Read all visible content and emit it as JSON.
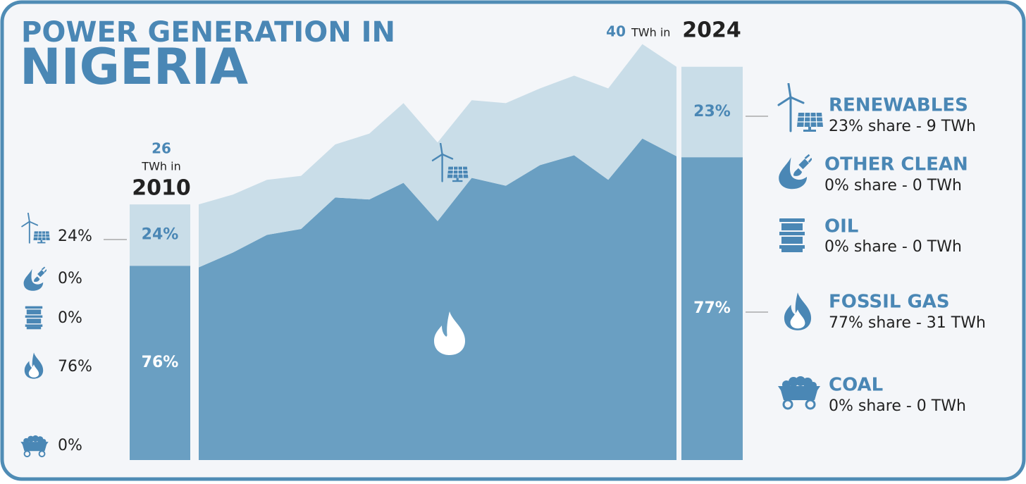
{
  "chart_data": {
    "type": "area",
    "title": "POWER GENERATION IN",
    "subtitle": "NIGERIA",
    "unit": "TWh in",
    "categories": [
      "2010",
      null,
      null,
      null,
      null,
      null,
      null,
      null,
      null,
      null,
      null,
      null,
      null,
      null,
      "2024"
    ],
    "ylim": [
      0,
      45
    ],
    "series": [
      {
        "name": "FOSSIL GAS",
        "color": "#6a9fc2",
        "values": [
          19.6,
          21.1,
          22.9,
          23.5,
          26.7,
          26.5,
          28.2,
          24.3,
          28.7,
          27.9,
          30.0,
          31.0,
          28.5,
          32.7,
          30.9
        ]
      },
      {
        "name": "RENEWABLES",
        "color": "#c9dde8",
        "values": [
          6.4,
          5.9,
          5.6,
          5.4,
          5.4,
          6.7,
          8.1,
          8.0,
          7.9,
          8.4,
          7.8,
          8.1,
          9.3,
          9.6,
          9.1
        ]
      }
    ],
    "start": {
      "total": 26,
      "segments": [
        {
          "share": 76,
          "label": "76%"
        },
        {
          "share": 24,
          "label": "24%"
        }
      ],
      "breakdown": [
        "24%",
        "0%",
        "0%",
        "76%",
        "0%"
      ]
    },
    "end": {
      "total": 40,
      "segments": [
        {
          "share": 77,
          "label": "77%"
        },
        {
          "share": 23,
          "label": "23%"
        }
      ]
    },
    "legend": [
      {
        "name": "RENEWABLES",
        "detail": "23% share - 9 TWh"
      },
      {
        "name": "OTHER CLEAN",
        "detail": "0% share - 0 TWh"
      },
      {
        "name": "OIL",
        "detail": "0% share - 0 TWh"
      },
      {
        "name": "FOSSIL GAS",
        "detail": "77% share - 31 TWh"
      },
      {
        "name": "COAL",
        "detail": "0% share - 0 TWh"
      }
    ]
  }
}
